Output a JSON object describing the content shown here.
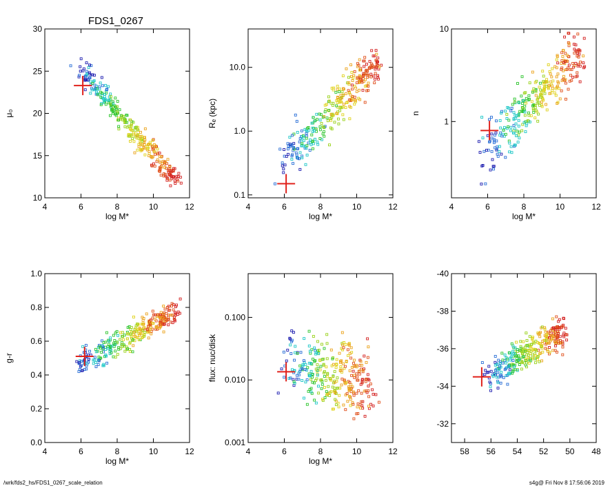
{
  "title": "FDS1_0267",
  "footer": {
    "left": "/wrk/fds2_hs/FDS1_0267_scale_relation",
    "right": "s4g@  Fri Nov  8 17:56:06 2019"
  },
  "colors": {
    "marker": "#e0201a",
    "axes": "#000000"
  },
  "chart_data": [
    {
      "type": "scatter",
      "title": "FDS1_0267",
      "xlabel": "log M*",
      "ylabel": "μ₀",
      "xscale": "linear",
      "yscale": "linear",
      "yinvert": true,
      "xlim": [
        4,
        12
      ],
      "ylim": [
        10,
        30
      ],
      "xticks": [
        4,
        6,
        8,
        10,
        12
      ],
      "xtick_labels": [
        "4",
        "6",
        "8",
        "10",
        "12"
      ],
      "yticks": [
        10,
        15,
        20,
        25,
        30
      ],
      "ytick_labels": [
        "10",
        "15",
        "20",
        "25",
        "30"
      ],
      "trend": {
        "x": [
          5.2,
          11.5
        ],
        "y": [
          25.8,
          12.0
        ],
        "spread": 1.5
      },
      "highlight": {
        "x": 6.1,
        "y": 23.3
      }
    },
    {
      "type": "scatter",
      "title": "",
      "xlabel": "log M*",
      "ylabel": "Rₑ (kpc)",
      "xscale": "linear",
      "yscale": "log",
      "yinvert": false,
      "xlim": [
        4,
        12
      ],
      "ylim": [
        0.09,
        40
      ],
      "xticks": [
        4,
        6,
        8,
        10,
        12
      ],
      "xtick_labels": [
        "4",
        "6",
        "8",
        "10",
        "12"
      ],
      "yticks": [
        0.1,
        1.0,
        10.0
      ],
      "ytick_labels": [
        "0.1",
        "1.0",
        "10.0"
      ],
      "trend": {
        "x": [
          5.2,
          11.5
        ],
        "y": [
          0.3,
          12.0
        ],
        "spread": 1.6
      },
      "highlight": {
        "x": 6.1,
        "y": 0.15
      }
    },
    {
      "type": "scatter",
      "title": "",
      "xlabel": "log M*",
      "ylabel": "n",
      "xscale": "linear",
      "yscale": "log",
      "yinvert": false,
      "xlim": [
        4,
        12
      ],
      "ylim": [
        0.15,
        10
      ],
      "xticks": [
        4,
        6,
        8,
        10,
        12
      ],
      "xtick_labels": [
        "4",
        "6",
        "8",
        "10",
        "12"
      ],
      "yticks": [
        1,
        10
      ],
      "ytick_labels": [
        "1",
        "10"
      ],
      "trend": {
        "x": [
          5.2,
          11.5
        ],
        "y": [
          0.45,
          5.5
        ],
        "spread": 1.5
      },
      "highlight": {
        "x": 6.1,
        "y": 0.8
      }
    },
    {
      "type": "scatter",
      "title": "",
      "xlabel": "log M*",
      "ylabel": "g-r",
      "xscale": "linear",
      "yscale": "linear",
      "yinvert": false,
      "xlim": [
        4,
        12
      ],
      "ylim": [
        0.0,
        1.0
      ],
      "xticks": [
        4,
        6,
        8,
        10,
        12
      ],
      "xtick_labels": [
        "4",
        "6",
        "8",
        "10",
        "12"
      ],
      "yticks": [
        0.0,
        0.2,
        0.4,
        0.6,
        0.8,
        1.0
      ],
      "ytick_labels": [
        "0.0",
        "0.2",
        "0.4",
        "0.6",
        "0.8",
        "1.0"
      ],
      "trend": {
        "x": [
          5.2,
          11.5
        ],
        "y": [
          0.45,
          0.78
        ],
        "spread": 0.1
      },
      "highlight": {
        "x": 6.2,
        "y": 0.51
      }
    },
    {
      "type": "scatter",
      "title": "",
      "xlabel": "log M*",
      "ylabel": "flux: nuc/disk",
      "xscale": "linear",
      "yscale": "log",
      "yinvert": false,
      "xlim": [
        4,
        12
      ],
      "ylim": [
        0.001,
        0.5
      ],
      "xticks": [
        4,
        6,
        8,
        10,
        12
      ],
      "xtick_labels": [
        "4",
        "6",
        "8",
        "10",
        "12"
      ],
      "yticks": [
        0.001,
        0.01,
        0.1
      ],
      "ytick_labels": [
        "0.001",
        "0.010",
        "0.100"
      ],
      "trend": {
        "x": [
          5.5,
          11.0
        ],
        "y": [
          0.02,
          0.008
        ],
        "spread": 3.2
      },
      "highlight": {
        "x": 6.1,
        "y": 0.0135
      }
    },
    {
      "type": "scatter",
      "title": "",
      "xlabel": "",
      "ylabel": "",
      "xscale": "linear",
      "yscale": "linear",
      "yinvert": true,
      "xinvert": true,
      "xlim": [
        59,
        48
      ],
      "ylim": [
        -31,
        -40
      ],
      "xticks": [
        58,
        56,
        54,
        52,
        50,
        48
      ],
      "xtick_labels": [
        "58",
        "56",
        "54",
        "52",
        "50",
        "48"
      ],
      "yticks": [
        -32,
        -34,
        -36,
        -38,
        -40
      ],
      "ytick_labels": [
        "-32",
        "-34",
        "-36",
        "-38",
        "-40"
      ],
      "trend": {
        "x": [
          57.0,
          50.0
        ],
        "y": [
          -34.5,
          -37.0
        ],
        "spread": 1.2
      },
      "highlight": {
        "x": 56.7,
        "y": -34.5
      }
    }
  ]
}
